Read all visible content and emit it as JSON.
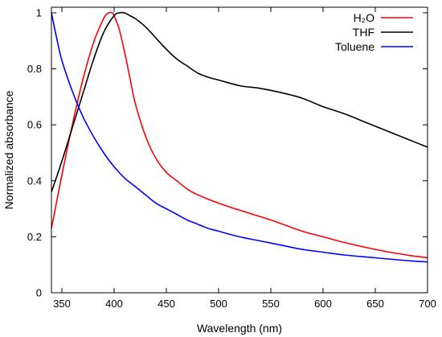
{
  "chart_data": {
    "type": "line",
    "xlabel": "Wavelength (nm)",
    "ylabel": "Normalized absorbance",
    "xlim": [
      340,
      700
    ],
    "ylim": [
      0,
      1.02
    ],
    "xticks": [
      350,
      400,
      450,
      500,
      550,
      600,
      650,
      700
    ],
    "yticks": [
      0,
      0.2,
      0.4,
      0.6,
      0.8,
      1
    ],
    "ytick_labels": [
      "0",
      "0.2",
      "0.4",
      "0.6",
      "0.8",
      "1"
    ],
    "grid": false,
    "legend_position": "top-right",
    "series": [
      {
        "name": "H₂O",
        "color": "#ff0000",
        "x": [
          340,
          350,
          360,
          370,
          380,
          390,
          395,
          398,
          400,
          405,
          410,
          415,
          420,
          430,
          440,
          450,
          460,
          470,
          480,
          500,
          520,
          550,
          580,
          600,
          620,
          650,
          680,
          700
        ],
        "y": [
          0.23,
          0.42,
          0.6,
          0.76,
          0.89,
          0.98,
          1.0,
          1.0,
          0.99,
          0.94,
          0.86,
          0.77,
          0.68,
          0.56,
          0.48,
          0.43,
          0.4,
          0.37,
          0.35,
          0.32,
          0.295,
          0.26,
          0.22,
          0.2,
          0.18,
          0.155,
          0.135,
          0.125
        ]
      },
      {
        "name": "THF",
        "color": "#000000",
        "x": [
          340,
          350,
          360,
          370,
          380,
          390,
          400,
          405,
          410,
          415,
          420,
          430,
          440,
          450,
          460,
          470,
          480,
          490,
          500,
          520,
          540,
          560,
          580,
          600,
          620,
          640,
          660,
          680,
          700
        ],
        "y": [
          0.36,
          0.47,
          0.59,
          0.71,
          0.83,
          0.93,
          0.99,
          1.0,
          1.0,
          0.99,
          0.98,
          0.95,
          0.91,
          0.87,
          0.835,
          0.81,
          0.785,
          0.77,
          0.76,
          0.74,
          0.73,
          0.715,
          0.695,
          0.665,
          0.64,
          0.61,
          0.58,
          0.55,
          0.52
        ]
      },
      {
        "name": "Toluene",
        "color": "#0000ff",
        "x": [
          340,
          345,
          350,
          360,
          370,
          380,
          390,
          400,
          410,
          420,
          430,
          440,
          450,
          460,
          470,
          480,
          490,
          500,
          520,
          540,
          560,
          580,
          600,
          620,
          650,
          680,
          700
        ],
        "y": [
          1.0,
          0.91,
          0.83,
          0.72,
          0.63,
          0.56,
          0.5,
          0.45,
          0.41,
          0.38,
          0.35,
          0.32,
          0.3,
          0.28,
          0.26,
          0.245,
          0.23,
          0.22,
          0.2,
          0.185,
          0.17,
          0.155,
          0.145,
          0.135,
          0.125,
          0.115,
          0.11
        ]
      }
    ]
  }
}
